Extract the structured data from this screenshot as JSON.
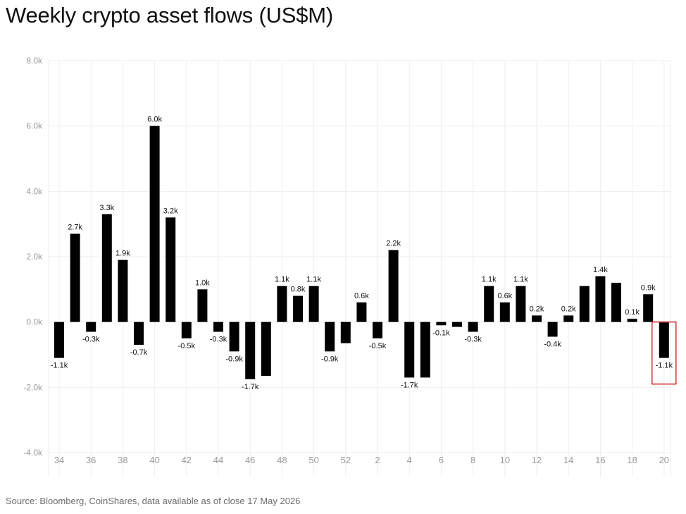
{
  "chart_data": {
    "type": "bar",
    "title": "Weekly crypto asset flows (US$M)",
    "source": "Source: Bloomberg, CoinShares, data available as of close 17 May 2026",
    "xlabel": "",
    "ylabel": "",
    "ylim": [
      -4000,
      8000
    ],
    "y_ticks": [
      -4000,
      -2000,
      0,
      2000,
      4000,
      6000,
      8000
    ],
    "y_tick_labels": [
      "-4.0k",
      "-2.0k",
      "0.0k",
      "2.0k",
      "4.0k",
      "6.0k",
      "8.0k"
    ],
    "x_tick_labels": [
      "34",
      "36",
      "38",
      "40",
      "42",
      "44",
      "46",
      "48",
      "50",
      "52",
      "2",
      "4",
      "6",
      "8",
      "10",
      "12",
      "14",
      "16",
      "18",
      "20"
    ],
    "categories": [
      "34",
      "35",
      "36",
      "37",
      "38",
      "39",
      "40",
      "41",
      "42",
      "43",
      "44",
      "45",
      "46",
      "47",
      "48",
      "49",
      "50",
      "51",
      "52",
      "1",
      "2",
      "3",
      "4",
      "5",
      "6",
      "7",
      "8",
      "9",
      "10",
      "11",
      "12",
      "13",
      "14",
      "15",
      "16",
      "17",
      "18",
      "19",
      "20"
    ],
    "values": [
      -1100,
      2700,
      -300,
      3300,
      1900,
      -700,
      6000,
      3200,
      -500,
      1000,
      -300,
      -900,
      -1750,
      -1650,
      1100,
      800,
      1100,
      -900,
      -650,
      600,
      -500,
      2200,
      -1700,
      -1700,
      -100,
      -150,
      -300,
      1100,
      600,
      1100,
      200,
      -450,
      200,
      1100,
      1400,
      1200,
      100,
      850,
      -1100
    ],
    "data_labels": [
      "-1.1k",
      "2.7k",
      "-0.3k",
      "3.3k",
      "1.9k",
      "-0.7k",
      "6.0k",
      "3.2k",
      "-0.5k",
      "1.0k",
      "-0.3k",
      "-0.9k",
      "-1.7k",
      "",
      "1.1k",
      "0.8k",
      "1.1k",
      "-0.9k",
      "",
      "0.6k",
      "-0.5k",
      "2.2k",
      "-1.7k",
      "",
      "-0.1k",
      "",
      "-0.3k",
      "1.1k",
      "0.6k",
      "1.1k",
      "0.2k",
      "-0.4k",
      "0.2k",
      "",
      "1.4k",
      "",
      "0.1k",
      "0.9k",
      "-1.1k"
    ],
    "grid": true,
    "legend": "none",
    "highlight_index": 38,
    "colors": {
      "bar": "#000000",
      "grid": "#eeeeee",
      "highlight_box": "#d32f2f",
      "tick": "#9a9a9a",
      "title": "#111111"
    }
  }
}
